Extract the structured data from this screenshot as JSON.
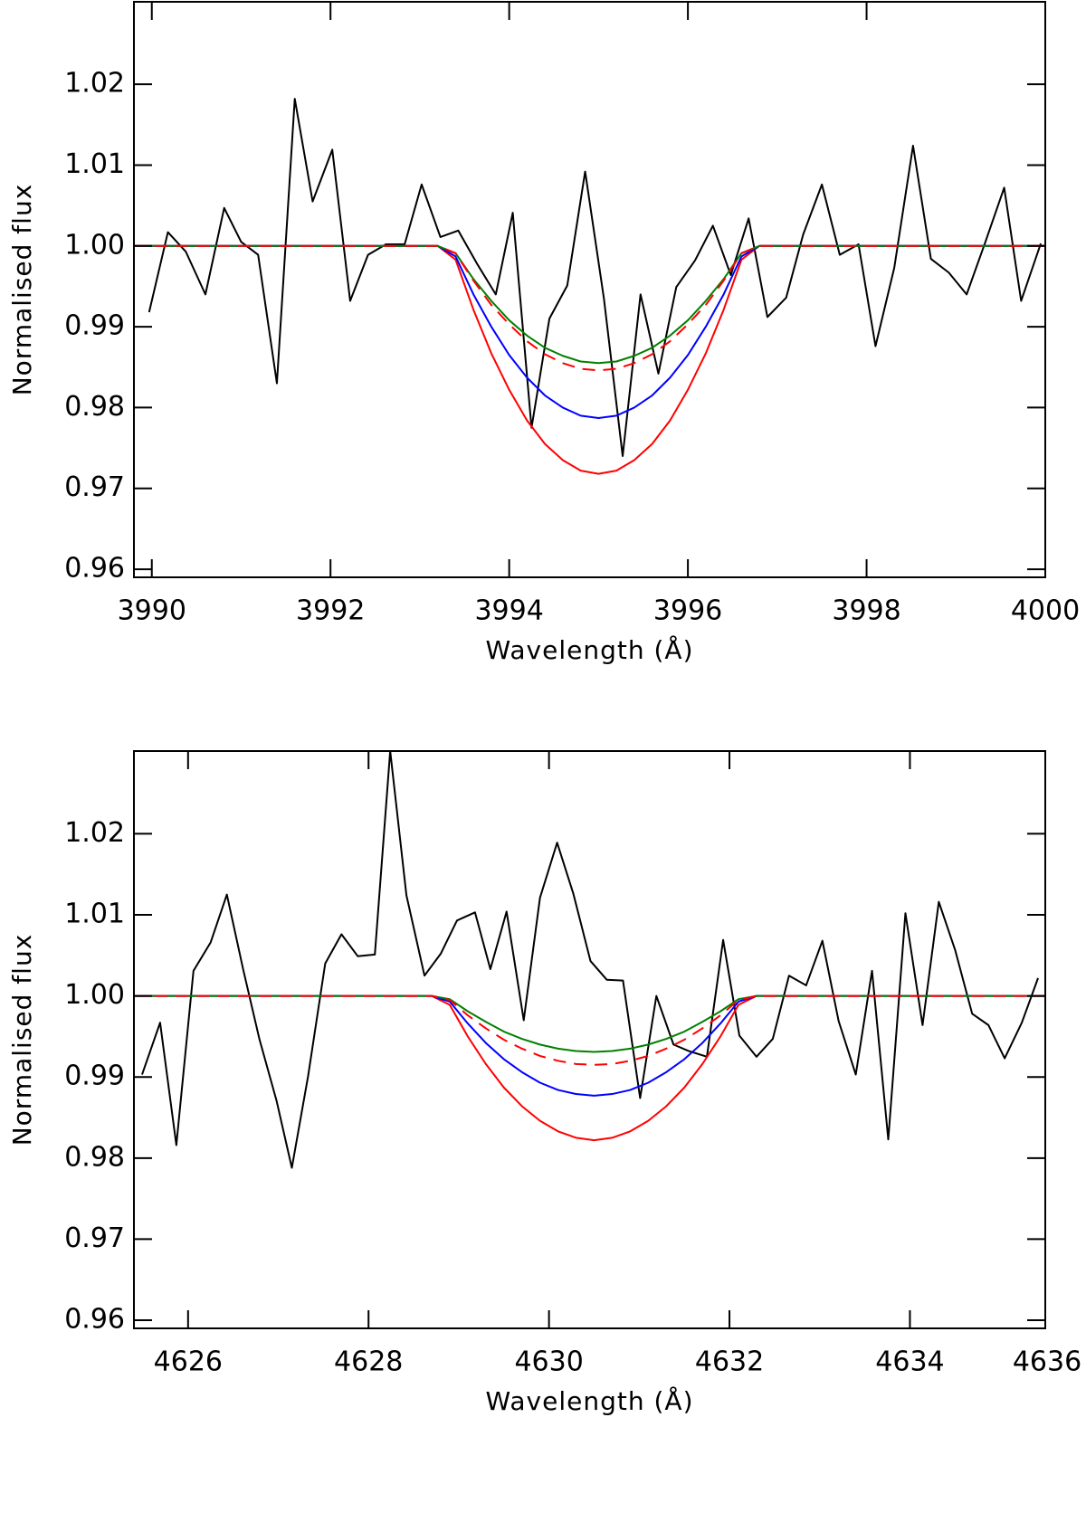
{
  "chart_data": [
    {
      "type": "line",
      "xlabel": "Wavelength (Å)",
      "ylabel": "Normalised flux",
      "xlim": [
        3989.8,
        4000
      ],
      "ylim": [
        0.959,
        1.0302
      ],
      "xticks": [
        3990,
        3992,
        3994,
        3996,
        3998,
        4000
      ],
      "yticks": [
        0.96,
        0.97,
        0.98,
        0.99,
        {
          "value": 1.0,
          "label": "1.00"
        },
        1.01,
        1.02
      ],
      "series": [
        {
          "color": "#000000",
          "x": [
            3989.97,
            3990.18,
            3990.38,
            3990.6,
            3990.81,
            3991.0,
            3991.19,
            3991.4,
            3991.6,
            3991.8,
            3992.02,
            3992.22,
            3992.42,
            3992.62,
            3992.83,
            3993.02,
            3993.23,
            3993.43,
            3993.64,
            3993.85,
            3994.04,
            3994.25,
            3994.45,
            3994.65,
            3994.85,
            3995.06,
            3995.27,
            3995.47,
            3995.67,
            3995.87,
            3996.08,
            3996.28,
            3996.48,
            3996.68,
            3996.89,
            3997.1,
            3997.29,
            3997.5,
            3997.7,
            3997.91,
            3998.1,
            3998.31,
            3998.52,
            3998.72,
            3998.92,
            3999.12,
            3999.33,
            3999.54,
            3999.73,
            3999.95
          ],
          "values": [
            0.9918,
            1.0017,
            0.9993,
            0.994,
            1.0047,
            1.0005,
            0.9989,
            0.983,
            1.0182,
            1.0055,
            1.0119,
            0.9932,
            0.9989,
            1.0002,
            1.0002,
            1.0076,
            1.0011,
            1.0019,
            0.9978,
            0.994,
            1.0041,
            0.9775,
            0.991,
            0.9951,
            1.0092,
            0.9935,
            0.974,
            0.994,
            0.9842,
            0.9949,
            0.9982,
            1.0025,
            0.9964,
            1.0034,
            0.9912,
            0.9936,
            1.0014,
            1.0076,
            0.9989,
            1.0002,
            0.9876,
            0.9973,
            1.0124,
            0.9984,
            0.9967,
            0.994,
            1.0005,
            1.0072,
            0.9932,
            1.0003
          ]
        },
        {
          "color": "#ff0000",
          "x": [
            3989.8,
            3993.2,
            3993.4,
            3993.6,
            3993.8,
            3994.0,
            3994.2,
            3994.4,
            3994.6,
            3994.8,
            3995.0,
            3995.2,
            3995.4,
            3995.6,
            3995.8,
            3996.0,
            3996.2,
            3996.4,
            3996.6,
            3996.8,
            4000
          ],
          "values": [
            1.0,
            1.0,
            0.9983,
            0.9921,
            0.9867,
            0.9822,
            0.9784,
            0.9755,
            0.9735,
            0.9722,
            0.9718,
            0.9722,
            0.9735,
            0.9755,
            0.9784,
            0.9822,
            0.9867,
            0.9921,
            0.9983,
            1.0,
            1.0
          ]
        },
        {
          "color": "#0000ff",
          "x": [
            3989.8,
            3993.2,
            3993.4,
            3993.6,
            3993.8,
            3994.0,
            3994.2,
            3994.4,
            3994.6,
            3994.8,
            3995.0,
            3995.2,
            3995.4,
            3995.6,
            3995.8,
            3996.0,
            3996.2,
            3996.4,
            3996.6,
            3996.8,
            4000
          ],
          "values": [
            1.0,
            1.0,
            0.9987,
            0.994,
            0.99,
            0.9865,
            0.9837,
            0.9815,
            0.98,
            0.979,
            0.9787,
            0.979,
            0.98,
            0.9815,
            0.9837,
            0.9865,
            0.99,
            0.994,
            0.9987,
            1.0,
            1.0
          ]
        },
        {
          "color": "#008000",
          "x": [
            3989.8,
            3993.2,
            3993.4,
            3993.6,
            3993.8,
            3994.0,
            3994.2,
            3994.4,
            3994.6,
            3994.8,
            3995.0,
            3995.2,
            3995.4,
            3995.6,
            3995.8,
            3996.0,
            3996.2,
            3996.4,
            3996.6,
            3996.8,
            4000
          ],
          "values": [
            1.0,
            1.0,
            0.9991,
            0.9959,
            0.9932,
            0.9908,
            0.9889,
            0.9874,
            0.9864,
            0.9857,
            0.9855,
            0.9857,
            0.9864,
            0.9874,
            0.9889,
            0.9908,
            0.9932,
            0.9959,
            0.9991,
            1.0,
            1.0
          ]
        },
        {
          "color": "#ff0000",
          "dash": true,
          "x": [
            3989.8,
            3993.2,
            3993.4,
            3993.6,
            3993.8,
            3994.0,
            3994.2,
            3994.4,
            3994.6,
            3994.8,
            3995.0,
            3995.2,
            3995.4,
            3995.6,
            3995.8,
            3996.0,
            3996.2,
            3996.4,
            3996.6,
            3996.8,
            4000
          ],
          "values": [
            1.0,
            1.0,
            0.9991,
            0.9957,
            0.9927,
            0.9903,
            0.9882,
            0.9866,
            0.9855,
            0.9848,
            0.9846,
            0.9848,
            0.9855,
            0.9866,
            0.9882,
            0.9903,
            0.9927,
            0.9957,
            0.9991,
            1.0,
            1.0
          ]
        }
      ]
    },
    {
      "type": "line",
      "xlabel": "Wavelength (Å)",
      "ylabel": "Normalised flux",
      "xlim": [
        4625.4,
        4635.5
      ],
      "ylim": [
        0.959,
        1.0302
      ],
      "xticks": [
        4626,
        4628,
        4630,
        4632,
        4634,
        4636
      ],
      "yticks": [
        0.96,
        0.97,
        0.98,
        0.99,
        {
          "value": 1.0,
          "label": "1.00"
        },
        1.01,
        1.02
      ],
      "series": [
        {
          "color": "#000000",
          "x": [
            4625.49,
            4625.69,
            4625.87,
            4626.06,
            4626.25,
            4626.43,
            4626.61,
            4626.79,
            4626.98,
            4627.15,
            4627.33,
            4627.52,
            4627.7,
            4627.88,
            4628.07,
            4628.24,
            4628.42,
            4628.62,
            4628.8,
            4628.98,
            4629.18,
            4629.35,
            4629.53,
            4629.72,
            4629.9,
            4630.09,
            4630.27,
            4630.46,
            4630.64,
            4630.82,
            4631.01,
            4631.19,
            4631.38,
            4631.55,
            4631.75,
            4631.93,
            4632.11,
            4632.3,
            4632.48,
            4632.66,
            4632.85,
            4633.03,
            4633.21,
            4633.4,
            4633.58,
            4633.76,
            4633.95,
            4634.14,
            4634.32,
            4634.5,
            4634.69,
            4634.87,
            4635.05,
            4635.24,
            4635.42
          ],
          "values": [
            0.9903,
            0.9967,
            0.9816,
            1.0031,
            1.0066,
            1.0125,
            1.0033,
            0.9947,
            0.9871,
            0.9788,
            0.9901,
            1.004,
            1.0076,
            1.0049,
            1.0051,
            1.0302,
            1.0124,
            1.0025,
            1.0052,
            1.0093,
            1.0103,
            1.0033,
            1.0104,
            0.997,
            1.0121,
            1.0189,
            1.0126,
            1.0043,
            1.002,
            1.0019,
            0.9874,
            1.0,
            0.994,
            0.9932,
            0.9925,
            1.0069,
            0.9951,
            0.9925,
            0.9947,
            1.0025,
            1.0013,
            1.0068,
            0.9969,
            0.9903,
            1.0031,
            0.9823,
            1.0102,
            0.9964,
            1.0116,
            1.0057,
            0.9978,
            0.9964,
            0.9923,
            0.9967,
            1.0022
          ]
        },
        {
          "color": "#ff0000",
          "x": [
            4625.4,
            4628.7,
            4628.9,
            4629.1,
            4629.3,
            4629.5,
            4629.7,
            4629.9,
            4630.1,
            4630.3,
            4630.5,
            4630.7,
            4630.9,
            4631.1,
            4631.3,
            4631.5,
            4631.7,
            4631.9,
            4632.1,
            4632.3,
            4635.5
          ],
          "values": [
            1.0,
            1.0,
            0.9989,
            0.995,
            0.9916,
            0.9887,
            0.9864,
            0.9846,
            0.9833,
            0.9825,
            0.9822,
            0.9825,
            0.9833,
            0.9846,
            0.9864,
            0.9887,
            0.9916,
            0.995,
            0.9989,
            1.0,
            1.0
          ]
        },
        {
          "color": "#0000ff",
          "x": [
            4625.4,
            4628.7,
            4628.9,
            4629.1,
            4629.3,
            4629.5,
            4629.7,
            4629.9,
            4630.1,
            4630.3,
            4630.5,
            4630.7,
            4630.9,
            4631.1,
            4631.3,
            4631.5,
            4631.7,
            4631.9,
            4632.1,
            4632.3,
            4635.5
          ],
          "values": [
            1.0,
            1.0,
            0.9993,
            0.9966,
            0.9942,
            0.9922,
            0.9906,
            0.9893,
            0.9884,
            0.9879,
            0.9877,
            0.9879,
            0.9884,
            0.9893,
            0.9906,
            0.9922,
            0.9942,
            0.9966,
            0.9993,
            1.0,
            1.0
          ]
        },
        {
          "color": "#008000",
          "x": [
            4625.4,
            4628.7,
            4628.9,
            4629.1,
            4629.3,
            4629.5,
            4629.7,
            4629.9,
            4630.1,
            4630.3,
            4630.5,
            4630.7,
            4630.9,
            4631.1,
            4631.3,
            4631.5,
            4631.7,
            4631.9,
            4632.1,
            4632.3,
            4635.5
          ],
          "values": [
            1.0,
            1.0,
            0.9996,
            0.9981,
            0.9968,
            0.9956,
            0.9947,
            0.994,
            0.9935,
            0.9932,
            0.9931,
            0.9932,
            0.9935,
            0.994,
            0.9947,
            0.9956,
            0.9968,
            0.9981,
            0.9996,
            1.0,
            1.0
          ]
        },
        {
          "color": "#ff0000",
          "dash": true,
          "x": [
            4625.4,
            4628.7,
            4628.9,
            4629.1,
            4629.3,
            4629.5,
            4629.7,
            4629.9,
            4630.1,
            4630.3,
            4630.5,
            4630.7,
            4630.9,
            4631.1,
            4631.3,
            4631.5,
            4631.7,
            4631.9,
            4632.1,
            4632.3,
            4635.5
          ],
          "values": [
            1.0,
            1.0,
            0.9995,
            0.9976,
            0.996,
            0.9946,
            0.9935,
            0.9926,
            0.992,
            0.9916,
            0.9915,
            0.9916,
            0.992,
            0.9926,
            0.9935,
            0.9946,
            0.996,
            0.9976,
            0.9995,
            1.0,
            1.0
          ]
        }
      ]
    }
  ]
}
